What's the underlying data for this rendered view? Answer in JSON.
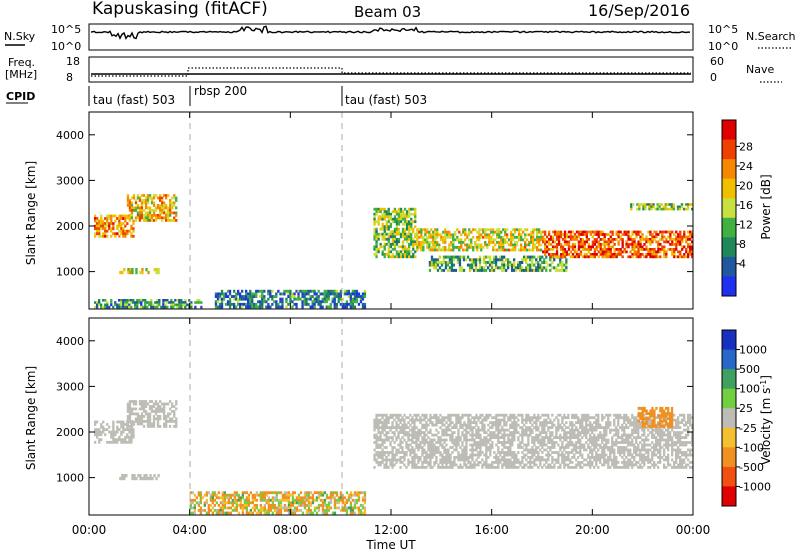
{
  "header": {
    "station": "Kapuskasing (fitACF)",
    "beam": "Beam 03",
    "date": "16/Sep/2016"
  },
  "top_panel": {
    "left_label": "N.Sky",
    "left_ticks": [
      "10^5",
      "10^0"
    ],
    "right_ticks": [
      "10^5",
      "10^0"
    ],
    "right_label": "N.Search"
  },
  "freq_panel": {
    "left_label_line1": "Freq.",
    "left_label_line2": "[MHz]",
    "left_ticks": [
      "18",
      "8"
    ],
    "right_ticks": [
      "60",
      "0"
    ],
    "right_label": "Nave"
  },
  "cpid_panel": {
    "label": "CPID",
    "segments": [
      {
        "label": "tau (fast) 503",
        "start_hour": 0
      },
      {
        "label": "rbsp 200",
        "start_hour": 4
      },
      {
        "label": "tau (fast) 503",
        "start_hour": 10
      }
    ]
  },
  "power_colorbar": {
    "label": "Power [dB]",
    "ticks": [
      "28",
      "24",
      "20",
      "16",
      "12",
      "8",
      "4"
    ],
    "colors": [
      "#e00000",
      "#f04000",
      "#f58800",
      "#f0c000",
      "#c8e040",
      "#40b040",
      "#208858",
      "#2058a0",
      "#2030f0"
    ]
  },
  "velocity_colorbar": {
    "label_main": "Velocity [m s",
    "label_sup": "-1",
    "label_end": "]",
    "ticks": [
      "1000",
      "500",
      "100",
      "25",
      "-25",
      "-100",
      "-500",
      "-1000"
    ],
    "colors": [
      "#1830c0",
      "#2868c8",
      "#40a060",
      "#70d040",
      "#bdbdb5",
      "#f5c030",
      "#f09020",
      "#f05010",
      "#e00000"
    ]
  },
  "axes": {
    "ylabel": "Slant Range [km]",
    "yticks": [
      "4000",
      "3000",
      "2000",
      "1000"
    ],
    "xlabel": "Time UT",
    "xticks": [
      "00:00",
      "04:00",
      "08:00",
      "12:00",
      "16:00",
      "20:00",
      "00:00"
    ]
  },
  "chart_data": [
    {
      "type": "heatmap",
      "title": "Power",
      "xlabel": "Time UT",
      "ylabel": "Slant Range [km]",
      "x_unit": "hours UT",
      "xlim": [
        0,
        24
      ],
      "ylim": [
        180,
        4500
      ],
      "value_label": "Power [dB]",
      "vlim": [
        0,
        32
      ],
      "bands": [
        {
          "t0": 0.2,
          "t1": 1.8,
          "r0": 1750,
          "r1": 2250,
          "value": 22
        },
        {
          "t0": 1.5,
          "t1": 3.5,
          "r0": 2100,
          "r1": 2700,
          "value": 20
        },
        {
          "t0": 1.2,
          "t1": 2.8,
          "r0": 950,
          "r1": 1080,
          "value": 18
        },
        {
          "t0": 0.2,
          "t1": 4.5,
          "r0": 200,
          "r1": 400,
          "value": 10
        },
        {
          "t0": 5.0,
          "t1": 11.0,
          "r0": 200,
          "r1": 600,
          "value": 8
        },
        {
          "t0": 11.3,
          "t1": 13.0,
          "r0": 1300,
          "r1": 2400,
          "value": 14
        },
        {
          "t0": 13.0,
          "t1": 18.0,
          "r0": 1450,
          "r1": 1950,
          "value": 18
        },
        {
          "t0": 13.5,
          "t1": 19.0,
          "r0": 1000,
          "r1": 1350,
          "value": 12
        },
        {
          "t0": 18.0,
          "t1": 24.0,
          "r0": 1300,
          "r1": 1900,
          "value": 26
        },
        {
          "t0": 21.5,
          "t1": 24.0,
          "r0": 2350,
          "r1": 2500,
          "value": 14
        }
      ]
    },
    {
      "type": "heatmap",
      "title": "Velocity",
      "xlabel": "Time UT",
      "ylabel": "Slant Range [km]",
      "x_unit": "hours UT",
      "xlim": [
        0,
        24
      ],
      "ylim": [
        180,
        4500
      ],
      "value_label": "Velocity [m s-1]",
      "vlim": [
        -1000,
        1000
      ],
      "bands": [
        {
          "t0": 0.2,
          "t1": 1.8,
          "r0": 1750,
          "r1": 2250,
          "value": 0
        },
        {
          "t0": 1.5,
          "t1": 3.5,
          "r0": 2100,
          "r1": 2700,
          "value": 0
        },
        {
          "t0": 1.2,
          "t1": 2.8,
          "r0": 950,
          "r1": 1080,
          "value": 0
        },
        {
          "t0": 4.0,
          "t1": 11.0,
          "r0": 200,
          "r1": 700,
          "value": -80
        },
        {
          "t0": 11.3,
          "t1": 24.0,
          "r0": 1200,
          "r1": 2400,
          "value": 0
        },
        {
          "t0": 21.8,
          "t1": 23.2,
          "r0": 2100,
          "r1": 2550,
          "value": -300
        }
      ]
    }
  ]
}
